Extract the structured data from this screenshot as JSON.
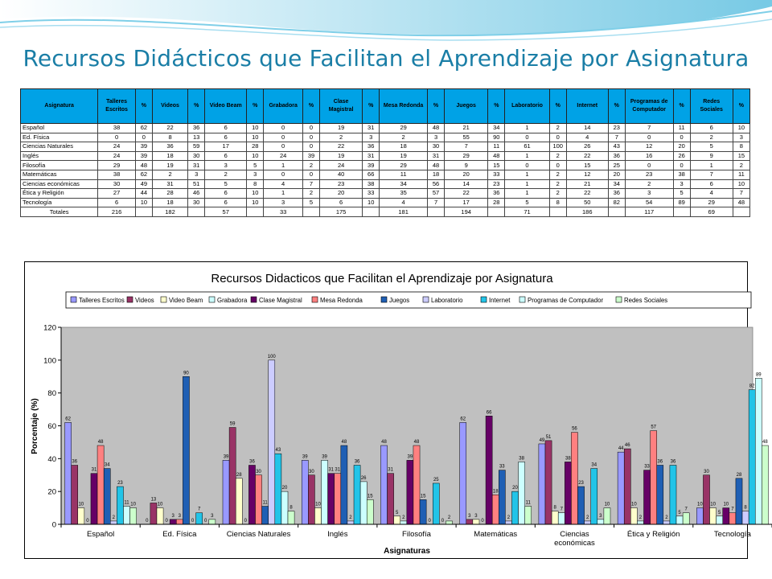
{
  "title": "Recursos Didácticos que Facilitan el Aprendizaje por Asignatura",
  "colors": {
    "title": "#1a7ea6",
    "table_header": "#00a2e6",
    "plot_bg": "#c0c0c0"
  },
  "table": {
    "headers": [
      "Asignatura",
      "Talleres Escritos",
      "%",
      "Videos",
      "%",
      "Video Beam",
      "%",
      "Grabadora",
      "%",
      "Clase Magistral",
      "%",
      "Mesa Redonda",
      "%",
      "Juegos",
      "%",
      "Laboratorio",
      "%",
      "Internet",
      "%",
      "Programas de Computador",
      "%",
      "Redes Sociales",
      "%"
    ],
    "rows": [
      [
        "Español",
        "38",
        "62",
        "22",
        "36",
        "6",
        "10",
        "0",
        "0",
        "19",
        "31",
        "29",
        "48",
        "21",
        "34",
        "1",
        "2",
        "14",
        "23",
        "7",
        "11",
        "6",
        "10"
      ],
      [
        "Ed. Física",
        "0",
        "0",
        "8",
        "13",
        "6",
        "10",
        "0",
        "0",
        "2",
        "3",
        "2",
        "3",
        "55",
        "90",
        "0",
        "0",
        "4",
        "7",
        "0",
        "0",
        "2",
        "3"
      ],
      [
        "Ciencias Naturales",
        "24",
        "39",
        "36",
        "59",
        "17",
        "28",
        "0",
        "0",
        "22",
        "36",
        "18",
        "30",
        "7",
        "11",
        "61",
        "100",
        "26",
        "43",
        "12",
        "20",
        "5",
        "8"
      ],
      [
        "Inglés",
        "24",
        "39",
        "18",
        "30",
        "6",
        "10",
        "24",
        "39",
        "19",
        "31",
        "19",
        "31",
        "29",
        "48",
        "1",
        "2",
        "22",
        "36",
        "16",
        "26",
        "9",
        "15"
      ],
      [
        "Filosofía",
        "29",
        "48",
        "19",
        "31",
        "3",
        "5",
        "1",
        "2",
        "24",
        "39",
        "29",
        "48",
        "9",
        "15",
        "0",
        "0",
        "15",
        "25",
        "0",
        "0",
        "1",
        "2"
      ],
      [
        "Matemáticas",
        "38",
        "62",
        "2",
        "3",
        "2",
        "3",
        "0",
        "0",
        "40",
        "66",
        "11",
        "18",
        "20",
        "33",
        "1",
        "2",
        "12",
        "20",
        "23",
        "38",
        "7",
        "11"
      ],
      [
        "Ciencias económicas",
        "30",
        "49",
        "31",
        "51",
        "5",
        "8",
        "4",
        "7",
        "23",
        "38",
        "34",
        "56",
        "14",
        "23",
        "1",
        "2",
        "21",
        "34",
        "2",
        "3",
        "6",
        "10"
      ],
      [
        "Ética y Religión",
        "27",
        "44",
        "28",
        "46",
        "6",
        "10",
        "1",
        "2",
        "20",
        "33",
        "35",
        "57",
        "22",
        "36",
        "1",
        "2",
        "22",
        "36",
        "3",
        "5",
        "4",
        "7"
      ],
      [
        "Tecnología",
        "6",
        "10",
        "18",
        "30",
        "6",
        "10",
        "3",
        "5",
        "6",
        "10",
        "4",
        "7",
        "17",
        "28",
        "5",
        "8",
        "50",
        "82",
        "54",
        "89",
        "29",
        "48"
      ]
    ],
    "totals": [
      "Totales",
      "216",
      "",
      "182",
      "",
      "57",
      "",
      "33",
      "",
      "175",
      "",
      "181",
      "",
      "194",
      "",
      "71",
      "",
      "186",
      "",
      "117",
      "",
      "69",
      ""
    ]
  },
  "chart_data": {
    "type": "bar",
    "title": "Recursos Didacticos que Facilitan el Aprendizaje por Asignatura",
    "xlabel": "Asignaturas",
    "ylabel": "Porcentaje (%)",
    "ylim": [
      0,
      120
    ],
    "yticks": [
      0,
      20,
      40,
      60,
      80,
      100,
      120
    ],
    "legend_position": "top",
    "grid": false,
    "categories": [
      "Español",
      "Ed. Física",
      "Ciencias Naturales",
      "Inglés",
      "Filosofía",
      "Matemáticas",
      "Ciencias\neconómicas",
      "Ética y Religión",
      "Tecnología"
    ],
    "series": [
      {
        "name": "Talleres Escritos",
        "color": "#9999ff",
        "values": [
          62,
          0,
          39,
          39,
          48,
          62,
          49,
          44,
          10
        ]
      },
      {
        "name": "Videos",
        "color": "#993366",
        "values": [
          36,
          13,
          59,
          30,
          31,
          3,
          51,
          46,
          30
        ]
      },
      {
        "name": "Video Beam",
        "color": "#ffffcc",
        "values": [
          10,
          10,
          28,
          10,
          5,
          3,
          8,
          10,
          10
        ]
      },
      {
        "name": "Grabadora",
        "color": "#ccffff",
        "values": [
          0,
          0,
          0,
          39,
          2,
          0,
          7,
          2,
          5
        ]
      },
      {
        "name": "Clase Magistral",
        "color": "#660066",
        "values": [
          31,
          3,
          36,
          31,
          39,
          66,
          38,
          33,
          10
        ]
      },
      {
        "name": "Mesa Redonda",
        "color": "#ff8080",
        "values": [
          48,
          3,
          30,
          31,
          48,
          18,
          56,
          57,
          7
        ]
      },
      {
        "name": "Juegos",
        "color": "#1f5fb4",
        "values": [
          34,
          90,
          11,
          48,
          15,
          33,
          23,
          36,
          28
        ]
      },
      {
        "name": "Laboratorio",
        "color": "#ccccff",
        "values": [
          2,
          0,
          100,
          2,
          0,
          2,
          2,
          2,
          8
        ]
      },
      {
        "name": "Internet",
        "color": "#22c4e8",
        "values": [
          23,
          7,
          43,
          36,
          25,
          20,
          34,
          36,
          82
        ]
      },
      {
        "name": "Programas de Computador",
        "color": "#ccffff",
        "values": [
          11,
          0,
          20,
          26,
          0,
          38,
          3,
          5,
          89
        ]
      },
      {
        "name": "Redes Sociales",
        "color": "#ccffcc",
        "values": [
          10,
          3,
          8,
          15,
          2,
          11,
          10,
          7,
          48
        ]
      }
    ]
  }
}
